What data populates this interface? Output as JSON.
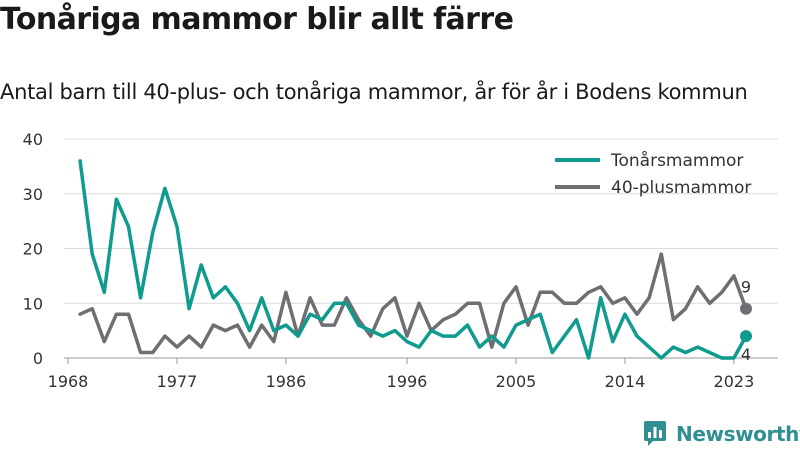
{
  "header": {
    "title": "Tonåriga mammor blir allt färre",
    "subtitle": "Antal barn till 40-plus- och tonåriga mammor, år för år i Bodens kommun"
  },
  "brand": {
    "name": "Newsworthy",
    "color": "#2f8f91",
    "logo_icon": "newsworthy-logo-icon"
  },
  "chart_data": {
    "type": "line",
    "title": "",
    "xlabel": "",
    "ylabel": "",
    "xlim": [
      1968,
      2024
    ],
    "ylim": [
      0,
      40
    ],
    "x_ticks": [
      1968,
      1977,
      1986,
      1996,
      2005,
      2014,
      2023
    ],
    "y_ticks": [
      0,
      10,
      20,
      30,
      40
    ],
    "grid": true,
    "legend_position": "top-right",
    "x": [
      1969,
      1970,
      1971,
      1972,
      1973,
      1974,
      1975,
      1976,
      1977,
      1978,
      1979,
      1980,
      1981,
      1982,
      1983,
      1984,
      1985,
      1986,
      1987,
      1988,
      1989,
      1990,
      1991,
      1992,
      1993,
      1994,
      1995,
      1996,
      1997,
      1998,
      1999,
      2000,
      2001,
      2002,
      2003,
      2004,
      2005,
      2006,
      2007,
      2008,
      2009,
      2010,
      2011,
      2012,
      2013,
      2014,
      2015,
      2016,
      2017,
      2018,
      2019,
      2020,
      2021,
      2022,
      2023,
      2024
    ],
    "series": [
      {
        "name": "Tonårsmammor",
        "color": "#0f9b8e",
        "values": [
          36,
          19,
          12,
          29,
          24,
          11,
          23,
          31,
          24,
          9,
          17,
          11,
          13,
          10,
          5,
          11,
          5,
          6,
          4,
          8,
          7,
          10,
          10,
          6,
          5,
          4,
          5,
          3,
          2,
          5,
          4,
          4,
          6,
          2,
          4,
          2,
          6,
          7,
          8,
          1,
          4,
          7,
          0,
          11,
          3,
          8,
          4,
          2,
          0,
          2,
          1,
          2,
          1,
          0,
          0,
          4
        ],
        "end_label": "4"
      },
      {
        "name": "40-plusmammor",
        "color": "#6e6e73",
        "values": [
          8,
          9,
          3,
          8,
          8,
          1,
          1,
          4,
          2,
          4,
          2,
          6,
          5,
          6,
          2,
          6,
          3,
          12,
          4,
          11,
          6,
          6,
          11,
          7,
          4,
          9,
          11,
          4,
          10,
          5,
          7,
          8,
          10,
          10,
          2,
          10,
          13,
          6,
          12,
          12,
          10,
          10,
          12,
          13,
          10,
          11,
          8,
          11,
          19,
          7,
          9,
          13,
          10,
          12,
          15,
          9
        ],
        "end_label": "9"
      }
    ]
  }
}
